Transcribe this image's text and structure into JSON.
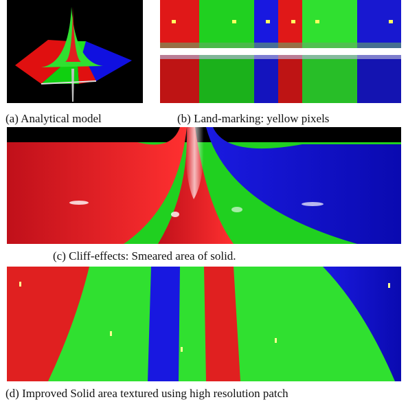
{
  "figures": [
    {
      "caption": "(a) Analytical model"
    },
    {
      "caption": "(b) Land-marking: yellow pixels"
    },
    {
      "caption": "(c) Cliff-effects: Smeared area of solid."
    },
    {
      "caption": "(d) Improved Solid area textured using high resolution patch"
    }
  ]
}
